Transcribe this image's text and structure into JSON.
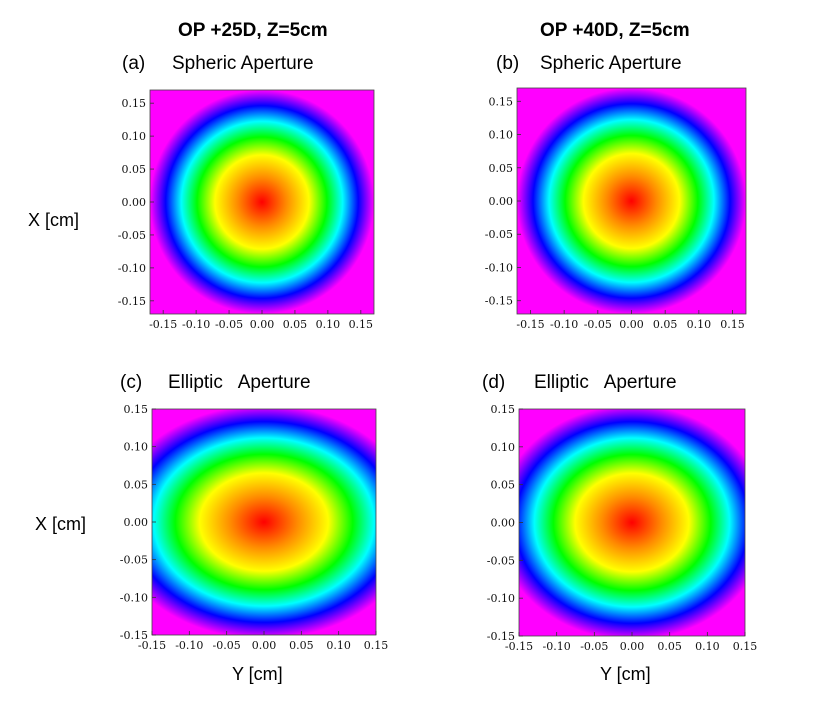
{
  "header": {
    "left": "OP +25D,  Z=5cm",
    "right": "OP +40D, Z=5cm"
  },
  "panels": [
    {
      "id": "a",
      "letter": "(a)",
      "title": "Spheric Aperture"
    },
    {
      "id": "b",
      "letter": "(b)",
      "title": "Spheric Aperture"
    },
    {
      "id": "c",
      "letter": "(c)",
      "title": "Elliptic   Aperture"
    },
    {
      "id": "d",
      "letter": "(d)",
      "title": "Elliptic   Aperture"
    }
  ],
  "axis_labels": {
    "x": "X [cm]",
    "y": "Y [cm]"
  },
  "chart_data": [
    {
      "type": "heatmap",
      "panel": "a",
      "xlabel": "",
      "ylabel": "X [cm]",
      "x_ticks": [
        "-0.15",
        "-0.10",
        "-0.05",
        "0.00",
        "0.05",
        "0.10",
        "0.15"
      ],
      "y_ticks": [
        "0.15",
        "0.10",
        "0.05",
        "0.00",
        "-0.05",
        "-0.10",
        "-0.15"
      ],
      "xlim": [
        -0.17,
        0.17
      ],
      "ylim": [
        -0.17,
        0.17
      ],
      "pattern": "circular",
      "center": [
        0.0,
        0.0
      ],
      "semi_axes": [
        0.17,
        0.17
      ],
      "colormap": [
        "#ff0000",
        "#ff8c00",
        "#ffff00",
        "#00ff00",
        "#00ffff",
        "#0000ff",
        "#ff00ff"
      ]
    },
    {
      "type": "heatmap",
      "panel": "b",
      "xlabel": "",
      "ylabel": "",
      "x_ticks": [
        "-0.15",
        "-0.10",
        "-0.05",
        "0.00",
        "0.05",
        "0.10",
        "0.15"
      ],
      "y_ticks": [
        "0.15",
        "0.10",
        "0.05",
        "0.00",
        "-0.05",
        "-0.10",
        "-0.15"
      ],
      "xlim": [
        -0.17,
        0.17
      ],
      "ylim": [
        -0.17,
        0.17
      ],
      "pattern": "circular",
      "center": [
        0.0,
        0.0
      ],
      "semi_axes": [
        0.17,
        0.17
      ],
      "colormap": [
        "#ff0000",
        "#ff8c00",
        "#ffff00",
        "#00ff00",
        "#00ffff",
        "#0000ff",
        "#ff00ff"
      ]
    },
    {
      "type": "heatmap",
      "panel": "c",
      "xlabel": "Y [cm]",
      "ylabel": "X [cm]",
      "x_ticks": [
        "-0.15",
        "-0.10",
        "-0.05",
        "0.00",
        "0.05",
        "0.10",
        "0.15"
      ],
      "y_ticks": [
        "0.15",
        "0.10",
        "0.05",
        "0.00",
        "-0.05",
        "-0.10",
        "-0.15"
      ],
      "xlim": [
        -0.15,
        0.15
      ],
      "ylim": [
        -0.15,
        0.15
      ],
      "pattern": "elliptic",
      "center": [
        0.0,
        0.0
      ],
      "semi_axes": [
        0.205,
        0.155
      ],
      "colormap": [
        "#ff0000",
        "#ff8c00",
        "#ffff00",
        "#00ff00",
        "#00ffff",
        "#0000ff",
        "#ff00ff"
      ]
    },
    {
      "type": "heatmap",
      "panel": "d",
      "xlabel": "Y [cm]",
      "ylabel": "",
      "x_ticks": [
        "-0.15",
        "-0.10",
        "-0.05",
        "0.00",
        "0.05",
        "0.10",
        "0.15"
      ],
      "y_ticks": [
        "0.15",
        "0.10",
        "0.05",
        "0.00",
        "-0.05",
        "-0.10",
        "-0.15"
      ],
      "xlim": [
        -0.15,
        0.15
      ],
      "ylim": [
        -0.15,
        0.15
      ],
      "pattern": "elliptic",
      "center": [
        0.0,
        0.0
      ],
      "semi_axes": [
        0.18,
        0.155
      ],
      "colormap": [
        "#ff0000",
        "#ff8c00",
        "#ffff00",
        "#00ff00",
        "#00ffff",
        "#0000ff",
        "#ff00ff"
      ]
    }
  ]
}
